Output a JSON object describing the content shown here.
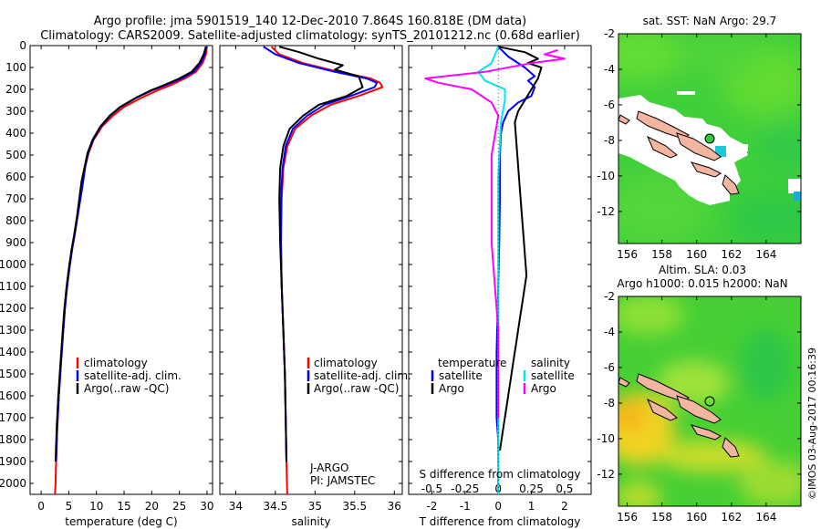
{
  "header": {
    "title_line1": "Argo profile: jma 5901519_140 12-Dec-2010 7.864S 160.818E (DM data)",
    "title_line2": "Climatology: CARS2009. Satellite-adjusted climatology: synTS_20101212.nc (0.68d earlier)"
  },
  "credit": "©IMOS 03-Aug-2017 00:16:39",
  "colors": {
    "clim": "#ff0000",
    "sat": "#0000ff",
    "argo": "#000000",
    "sal_sat": "#00e5ee",
    "sal_argo": "#ff00ff"
  },
  "chart_data": [
    {
      "type": "line",
      "id": "temperature",
      "xlabel": "temperature (deg C)",
      "ylabel": "",
      "xlim": [
        -2,
        31
      ],
      "ylim": [
        2050,
        0
      ],
      "xticks": [
        "0",
        "5",
        "10",
        "15",
        "20",
        "25",
        "30"
      ],
      "xtick_values": [
        0,
        5,
        10,
        15,
        20,
        25,
        30
      ],
      "yticks": [
        "0",
        "100",
        "200",
        "300",
        "400",
        "500",
        "600",
        "700",
        "800",
        "900",
        "1000",
        "1100",
        "1200",
        "1300",
        "1400",
        "1500",
        "1600",
        "1700",
        "1800",
        "1900",
        "2000"
      ],
      "ytick_values": [
        0,
        100,
        200,
        300,
        400,
        500,
        600,
        700,
        800,
        900,
        1000,
        1100,
        1200,
        1300,
        1400,
        1500,
        1600,
        1700,
        1800,
        1900,
        2000
      ],
      "legend": [
        "climatology",
        "satellite-adj. clim.",
        "Argo(..raw -QC)"
      ],
      "series": [
        {
          "name": "climatology",
          "color": "#ff0000",
          "x": [
            30.0,
            29.8,
            29.2,
            28.0,
            26.0,
            23.5,
            21.0,
            18.0,
            15.0,
            13.0,
            11.0,
            9.5,
            8.6,
            8.0,
            7.5,
            7.0,
            6.5,
            6.0,
            5.6,
            5.1,
            4.7,
            4.3,
            4.0,
            3.6,
            3.2,
            2.9,
            2.7,
            2.6,
            2.5
          ],
          "y": [
            5,
            40,
            80,
            120,
            150,
            180,
            205,
            240,
            280,
            320,
            370,
            430,
            490,
            550,
            620,
            700,
            780,
            860,
            930,
            1020,
            1100,
            1200,
            1300,
            1450,
            1600,
            1750,
            1900,
            2000,
            2050
          ]
        },
        {
          "name": "satellite-adj. clim.",
          "color": "#0000ff",
          "x": [
            29.9,
            29.6,
            28.9,
            27.6,
            25.4,
            22.6,
            20.0,
            17.1,
            14.4,
            12.5,
            10.8,
            9.4,
            8.5,
            8.0,
            7.6,
            7.1,
            6.6,
            6.1,
            5.6,
            5.1,
            4.7,
            4.3,
            4.0,
            3.6,
            3.2,
            2.9,
            2.7
          ],
          "y": [
            5,
            40,
            80,
            120,
            150,
            180,
            205,
            240,
            280,
            320,
            370,
            430,
            490,
            550,
            620,
            700,
            780,
            860,
            930,
            1020,
            1100,
            1200,
            1300,
            1450,
            1600,
            1750,
            1900
          ]
        },
        {
          "name": "Argo(..raw -QC)",
          "color": "#000000",
          "x": [
            29.8,
            29.4,
            28.6,
            27.2,
            25.0,
            22.3,
            19.8,
            17.0,
            14.3,
            12.4,
            10.7,
            9.3,
            8.4,
            7.9,
            7.3,
            6.9,
            6.5,
            6.0,
            5.5,
            5.0,
            4.6,
            4.2,
            3.9,
            3.5,
            3.1,
            2.8,
            2.6
          ],
          "y": [
            5,
            40,
            80,
            120,
            150,
            180,
            205,
            240,
            280,
            320,
            370,
            430,
            490,
            550,
            620,
            700,
            780,
            860,
            930,
            1020,
            1100,
            1200,
            1300,
            1450,
            1600,
            1750,
            1900
          ]
        }
      ]
    },
    {
      "type": "line",
      "id": "salinity",
      "xlabel": "salinity",
      "ylabel": "",
      "xlim": [
        33.8,
        36.1
      ],
      "ylim": [
        2050,
        0
      ],
      "xticks": [
        "34",
        "34.5",
        "35",
        "35.5",
        "36"
      ],
      "xtick_values": [
        34,
        34.5,
        35,
        35.5,
        36
      ],
      "legend": [
        "climatology",
        "satellite-adj. clim.",
        "Argo(..raw -QC)"
      ],
      "annotations": [
        "J-ARGO",
        "PI: JAMSTEC"
      ],
      "series": [
        {
          "name": "climatology",
          "color": "#ff0000",
          "x": [
            34.45,
            34.55,
            34.85,
            35.3,
            35.7,
            35.82,
            35.85,
            35.55,
            35.2,
            34.95,
            34.75,
            34.65,
            34.6,
            34.58,
            34.57,
            34.58,
            34.6,
            34.62,
            34.63,
            34.64,
            34.65
          ],
          "y": [
            5,
            40,
            80,
            120,
            150,
            170,
            190,
            230,
            270,
            320,
            380,
            460,
            560,
            700,
            900,
            1100,
            1300,
            1500,
            1700,
            1900,
            2050
          ]
        },
        {
          "name": "satellite-adj. clim.",
          "color": "#0000ff",
          "x": [
            34.35,
            34.5,
            34.8,
            35.25,
            35.65,
            35.78,
            35.75,
            35.45,
            35.12,
            34.9,
            34.72,
            34.63,
            34.59,
            34.57,
            34.57,
            34.58,
            34.6,
            34.62,
            34.63,
            34.64
          ],
          "y": [
            5,
            40,
            80,
            120,
            150,
            170,
            190,
            230,
            270,
            320,
            380,
            460,
            560,
            700,
            900,
            1100,
            1300,
            1500,
            1700,
            1900
          ]
        },
        {
          "name": "Argo(..raw -QC)",
          "color": "#000000",
          "x": [
            34.55,
            34.8,
            35.05,
            35.35,
            35.25,
            35.55,
            35.6,
            35.4,
            35.05,
            34.85,
            34.68,
            34.6,
            34.56,
            34.55,
            34.56,
            34.58,
            34.6,
            34.62,
            34.63,
            34.64
          ],
          "y": [
            5,
            30,
            60,
            90,
            110,
            140,
            190,
            230,
            270,
            320,
            380,
            460,
            560,
            700,
            900,
            1100,
            1300,
            1500,
            1700,
            1900
          ]
        }
      ]
    },
    {
      "type": "line",
      "id": "differences",
      "xlabel": "T difference from climatology",
      "xlabel_top": "S difference from climatology",
      "xlim": [
        -2.7,
        2.8
      ],
      "ylim": [
        2050,
        0
      ],
      "xticks": [
        "-2",
        "-1",
        "0",
        "1",
        "2"
      ],
      "xtick_values": [
        -2,
        -1,
        0,
        1,
        2
      ],
      "xticks_top": [
        "-0.5",
        "-0.25",
        "0",
        "0.25",
        "0.5"
      ],
      "xtick_values_top": [
        -0.5,
        -0.25,
        0,
        0.25,
        0.5
      ],
      "legend_titles": [
        "temperature",
        "salinity"
      ],
      "legend": [
        "satellite",
        "Argo",
        "satellite",
        "Argo"
      ],
      "series": [
        {
          "name": "T satellite",
          "color": "#0000ff",
          "x": [
            0.0,
            0.3,
            0.8,
            1.1,
            0.9,
            1.1,
            1.0,
            0.6,
            0.3,
            0.15,
            0.08,
            0.05,
            0.05,
            0.03,
            0.0,
            -0.05,
            -0.05,
            0.0,
            0.0,
            0.0
          ],
          "y": [
            5,
            50,
            100,
            140,
            160,
            190,
            230,
            260,
            300,
            350,
            400,
            500,
            700,
            900,
            1100,
            1400,
            1700,
            1800,
            1900,
            2050
          ]
        },
        {
          "name": "T Argo",
          "color": "#000000",
          "x": [
            0.0,
            0.8,
            1.2,
            0.9,
            1.3,
            1.2,
            1.0,
            0.8,
            0.6,
            0.5,
            0.55,
            0.6,
            0.65,
            0.7,
            0.75,
            0.8,
            0.85,
            0.75,
            0.65,
            0.55,
            0.45,
            0.35,
            0.25,
            0.15,
            0.05
          ],
          "y": [
            5,
            30,
            60,
            80,
            100,
            150,
            200,
            250,
            300,
            350,
            450,
            550,
            650,
            750,
            850,
            950,
            1050,
            1150,
            1250,
            1350,
            1450,
            1550,
            1650,
            1750,
            1850
          ]
        },
        {
          "name": "S satellite",
          "color": "#00e5ee",
          "x": [
            0.0,
            -0.05,
            -0.15,
            -0.1,
            0.05,
            0.05,
            0.02,
            0.0,
            0.0,
            0.0,
            0.0,
            0.0
          ],
          "y": [
            5,
            80,
            120,
            160,
            200,
            250,
            350,
            600,
            900,
            1300,
            1700,
            2050
          ]
        },
        {
          "name": "S Argo",
          "color": "#ff00ff",
          "x": [
            0.45,
            0.35,
            0.5,
            0.25,
            -0.1,
            -0.55,
            -0.45,
            -0.2,
            -0.05,
            0.0,
            -0.05,
            -0.05,
            0.0,
            0.0
          ],
          "y": [
            20,
            40,
            60,
            80,
            120,
            150,
            170,
            200,
            260,
            320,
            500,
            900,
            1300,
            1700
          ]
        }
      ]
    },
    {
      "type": "heatmap",
      "id": "sst_map",
      "title": "sat. SST: NaN Argo: 29.7",
      "xlim": [
        155.5,
        166
      ],
      "ylim": [
        -13.8,
        -2
      ],
      "xticks": [
        "156",
        "158",
        "160",
        "162",
        "164"
      ],
      "xtick_values": [
        156,
        158,
        160,
        162,
        164
      ],
      "yticks": [
        "-2",
        "-4",
        "-6",
        "-8",
        "-10",
        "-12"
      ],
      "ytick_values": [
        -2,
        -4,
        -6,
        -8,
        -10,
        -12
      ],
      "profile_location": {
        "lon": 160.818,
        "lat": -7.864
      }
    },
    {
      "type": "heatmap",
      "id": "sla_map",
      "title_line1": "Altim. SLA: 0.03",
      "title_line2": "Argo h1000: 0.015 h2000: NaN",
      "xlim": [
        155.5,
        166
      ],
      "ylim": [
        -13.8,
        -2
      ],
      "xticks": [
        "156",
        "158",
        "160",
        "162",
        "164"
      ],
      "xtick_values": [
        156,
        158,
        160,
        162,
        164
      ],
      "yticks": [
        "-2",
        "-4",
        "-6",
        "-8",
        "-10",
        "-12"
      ],
      "ytick_values": [
        -2,
        -4,
        -6,
        -8,
        -10,
        -12
      ],
      "profile_location": {
        "lon": 160.818,
        "lat": -7.864
      }
    }
  ]
}
